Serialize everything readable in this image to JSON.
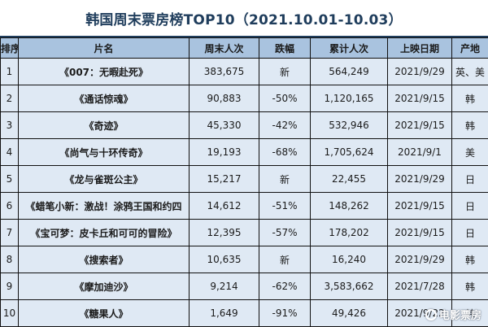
{
  "title": "韩国周末票房榜TOP10（2021.10.01-10.03）",
  "headers": [
    "排序",
    "片名",
    "周末人次",
    "跌幅",
    "累计人次",
    "上映日期",
    "产地"
  ],
  "rows": [
    {
      "rank": "1",
      "name": "《007：无暇赴死》",
      "weekend": "383,675",
      "drop": "新",
      "total": "564,249",
      "date": "2021/9/29",
      "origin": "英、美"
    },
    {
      "rank": "2",
      "name": "《通话惊魂》",
      "weekend": "90,883",
      "drop": "-50%",
      "total": "1,120,165",
      "date": "2021/9/15",
      "origin": "韩"
    },
    {
      "rank": "3",
      "name": "《奇迹》",
      "weekend": "45,330",
      "drop": "-42%",
      "total": "532,946",
      "date": "2021/9/15",
      "origin": "韩"
    },
    {
      "rank": "4",
      "name": "《尚气与十环传奇》",
      "weekend": "19,193",
      "drop": "-68%",
      "total": "1,705,624",
      "date": "2021/9/1",
      "origin": "美"
    },
    {
      "rank": "5",
      "name": "《龙与雀斑公主》",
      "weekend": "15,217",
      "drop": "新",
      "total": "22,455",
      "date": "2021/9/29",
      "origin": "日"
    },
    {
      "rank": "6",
      "name": "《蜡笔小新：激战！涂鸦王国和约四",
      "weekend": "14,612",
      "drop": "-51%",
      "total": "148,262",
      "date": "2021/9/15",
      "origin": "日"
    },
    {
      "rank": "7",
      "name": "《宝可梦：皮卡丘和可可的冒险》",
      "weekend": "12,395",
      "drop": "-57%",
      "total": "178,202",
      "date": "2021/9/15",
      "origin": "日"
    },
    {
      "rank": "8",
      "name": "《搜索者》",
      "weekend": "10,635",
      "drop": "新",
      "total": "16,240",
      "date": "2021/9/29",
      "origin": "韩"
    },
    {
      "rank": "9",
      "name": "《摩加迪沙》",
      "weekend": "9,214",
      "drop": "-62%",
      "total": "3,583,662",
      "date": "2021/7/28",
      "origin": "韩"
    },
    {
      "rank": "10",
      "name": "《糖果人》",
      "weekend": "1,649",
      "drop": "-91%",
      "total": "49,426",
      "date": "2021/9/22",
      "origin": "韩"
    }
  ],
  "watermark": "电影票房"
}
